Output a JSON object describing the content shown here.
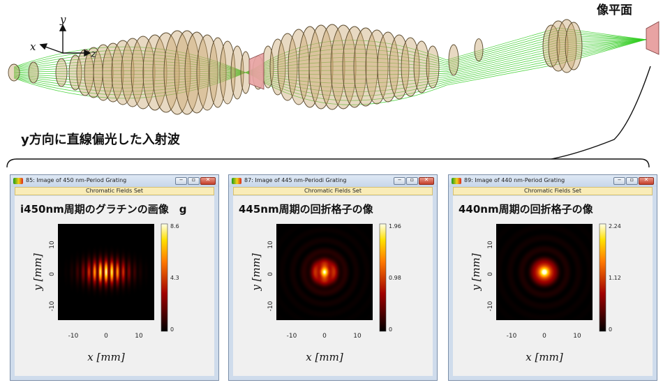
{
  "labels": {
    "image_plane": "像平面",
    "incident": "y方向に直線偏光した入射波",
    "axis_x": "x",
    "axis_y": "y",
    "axis_z": "z"
  },
  "windows": [
    {
      "title": "85: Image of 450 nm-Period Grating",
      "tab": "Chromatic Fields Set",
      "plot_title": "i450nm周期のグラチンの画像　g",
      "colorbar": {
        "max": "8.6",
        "mid": "4.3",
        "min": "0"
      },
      "xticks": [
        "-10",
        "0",
        "10"
      ],
      "yticks": [
        "10",
        "0",
        "-10"
      ],
      "xlabel": "x [mm]",
      "ylabel": "y [mm]"
    },
    {
      "title": "87: Image of 445 nm-Periodi Grating",
      "tab": "Chromatic Fields Set",
      "plot_title": "445nm周期の回折格子の像",
      "colorbar": {
        "max": "1.96",
        "mid": "0.98",
        "min": "0"
      },
      "xticks": [
        "-10",
        "0",
        "10"
      ],
      "yticks": [
        "10",
        "0",
        "-10"
      ],
      "xlabel": "x [mm]",
      "ylabel": "y [mm]"
    },
    {
      "title": "89: Image of 440 nm-Period Grating",
      "tab": "Chromatic Fields Set",
      "plot_title": "440nm周期の回折格子の像",
      "colorbar": {
        "max": "2.24",
        "mid": "1.12",
        "min": "0"
      },
      "xticks": [
        "-10",
        "0",
        "10"
      ],
      "yticks": [
        "10",
        "0",
        "-10"
      ],
      "xlabel": "x [mm]",
      "ylabel": "y [mm]"
    }
  ],
  "colors": {
    "lens_fill": "#c9a56e",
    "lens_stroke": "#5a4a2e",
    "ray": "#33cc22",
    "plane_fill": "#e8a3a3",
    "heatmap_low": "#000000",
    "heatmap_high": "#ffffff"
  }
}
